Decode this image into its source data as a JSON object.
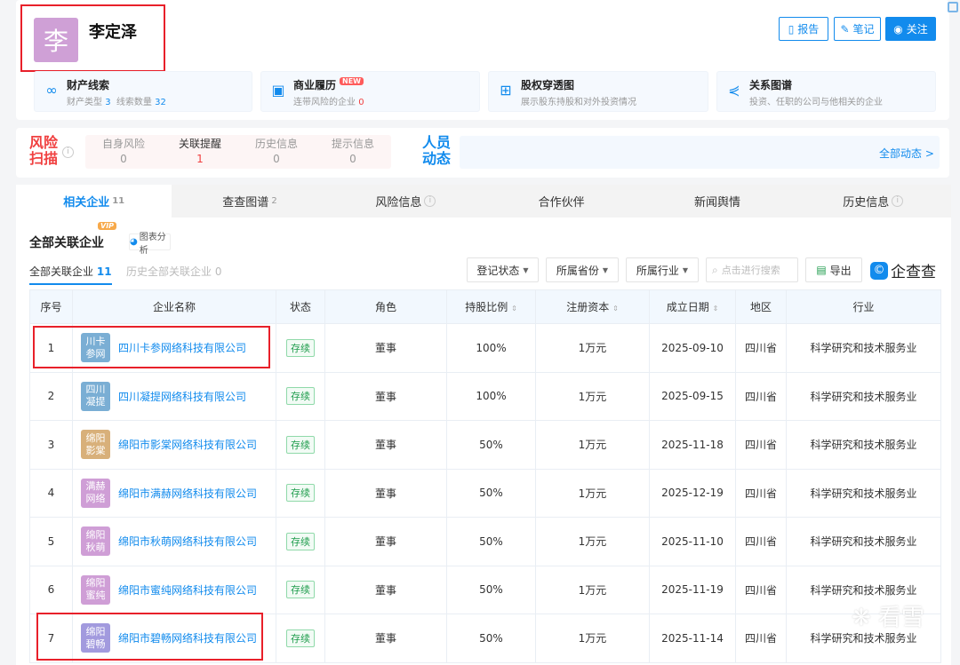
{
  "person": {
    "avatar_char": "李",
    "name": "李定泽"
  },
  "actions": {
    "report": "报告",
    "note": "笔记",
    "follow": "关注"
  },
  "features": [
    {
      "icon": "asset-clue-icon",
      "title": "财产线索",
      "sub_a": "财产类型",
      "val_a": "3",
      "sub_b": "线索数量",
      "val_b": "32"
    },
    {
      "icon": "briefcase-icon",
      "title": "商业履历",
      "badge": "NEW",
      "sub_a": "连带风险的企业",
      "val_a": "0"
    },
    {
      "icon": "org-chart-icon",
      "title": "股权穿透图",
      "sub_a": "展示股东持股和对外投资情况"
    },
    {
      "icon": "share-icon",
      "title": "关系图谱",
      "sub_a": "投资、任职的公司与他相关的企业"
    }
  ],
  "risk": {
    "title": "风险扫描",
    "items": [
      {
        "label": "自身风险",
        "value": "0"
      },
      {
        "label": "关联提醒",
        "value": "1"
      },
      {
        "label": "历史信息",
        "value": "0"
      },
      {
        "label": "提示信息",
        "value": "0"
      }
    ]
  },
  "people": {
    "title": "人员动态",
    "all_link": "全部动态 >"
  },
  "tabs": [
    {
      "label": "相关企业",
      "count": "11"
    },
    {
      "label": "查查图谱",
      "count": "2"
    },
    {
      "label": "风险信息"
    },
    {
      "label": "合作伙伴"
    },
    {
      "label": "新闻舆情"
    },
    {
      "label": "历史信息"
    }
  ],
  "section": {
    "title": "全部关联企业",
    "vip": "VIP",
    "chart_btn": "图表分析",
    "subtab_all": "全部关联企业",
    "subtab_all_count": "11",
    "subtab_hist": "历史全部关联企业 0"
  },
  "filters": {
    "status": "登记状态",
    "province": "所属省份",
    "industry": "所属行业",
    "search_placeholder": "点击进行搜索",
    "export": "导出",
    "brand": "企查查"
  },
  "table": {
    "headers": [
      "序号",
      "企业名称",
      "状态",
      "角色",
      "持股比例",
      "注册资本",
      "成立日期",
      "地区",
      "行业"
    ],
    "rows": [
      {
        "no": "1",
        "logo": "川卡参网",
        "logo_color": "#7aaed4",
        "name": "四川卡参网络科技有限公司",
        "status": "存续",
        "role": "董事",
        "share": "100%",
        "capital": "1万元",
        "date": "2025-09-10",
        "region": "四川省",
        "industry": "科学研究和技术服务业"
      },
      {
        "no": "2",
        "logo": "四川凝提",
        "logo_color": "#7aaed4",
        "name": "四川凝提网络科技有限公司",
        "status": "存续",
        "role": "董事",
        "share": "100%",
        "capital": "1万元",
        "date": "2025-09-15",
        "region": "四川省",
        "industry": "科学研究和技术服务业"
      },
      {
        "no": "3",
        "logo": "绵阳影棠",
        "logo_color": "#d8b07a",
        "name": "绵阳市影棠网络科技有限公司",
        "status": "存续",
        "role": "董事",
        "share": "50%",
        "capital": "1万元",
        "date": "2025-11-18",
        "region": "四川省",
        "industry": "科学研究和技术服务业"
      },
      {
        "no": "4",
        "logo": "满赫网络",
        "logo_color": "#cf9ed6",
        "name": "绵阳市满赫网络科技有限公司",
        "status": "存续",
        "role": "董事",
        "share": "50%",
        "capital": "1万元",
        "date": "2025-12-19",
        "region": "四川省",
        "industry": "科学研究和技术服务业"
      },
      {
        "no": "5",
        "logo": "绵阳秋萌",
        "logo_color": "#cf9ed6",
        "name": "绵阳市秋萌网络科技有限公司",
        "status": "存续",
        "role": "董事",
        "share": "50%",
        "capital": "1万元",
        "date": "2025-11-10",
        "region": "四川省",
        "industry": "科学研究和技术服务业"
      },
      {
        "no": "6",
        "logo": "绵阳蜜纯",
        "logo_color": "#cf9ed6",
        "name": "绵阳市蜜纯网络科技有限公司",
        "status": "存续",
        "role": "董事",
        "share": "50%",
        "capital": "1万元",
        "date": "2025-11-19",
        "region": "四川省",
        "industry": "科学研究和技术服务业"
      },
      {
        "no": "7",
        "logo": "绵阳碧畅",
        "logo_color": "#a29ade",
        "name": "绵阳市碧畅网络科技有限公司",
        "status": "存续",
        "role": "董事",
        "share": "50%",
        "capital": "1万元",
        "date": "2025-11-14",
        "region": "四川省",
        "industry": "科学研究和技术服务业"
      }
    ]
  },
  "watermark": "看雪"
}
